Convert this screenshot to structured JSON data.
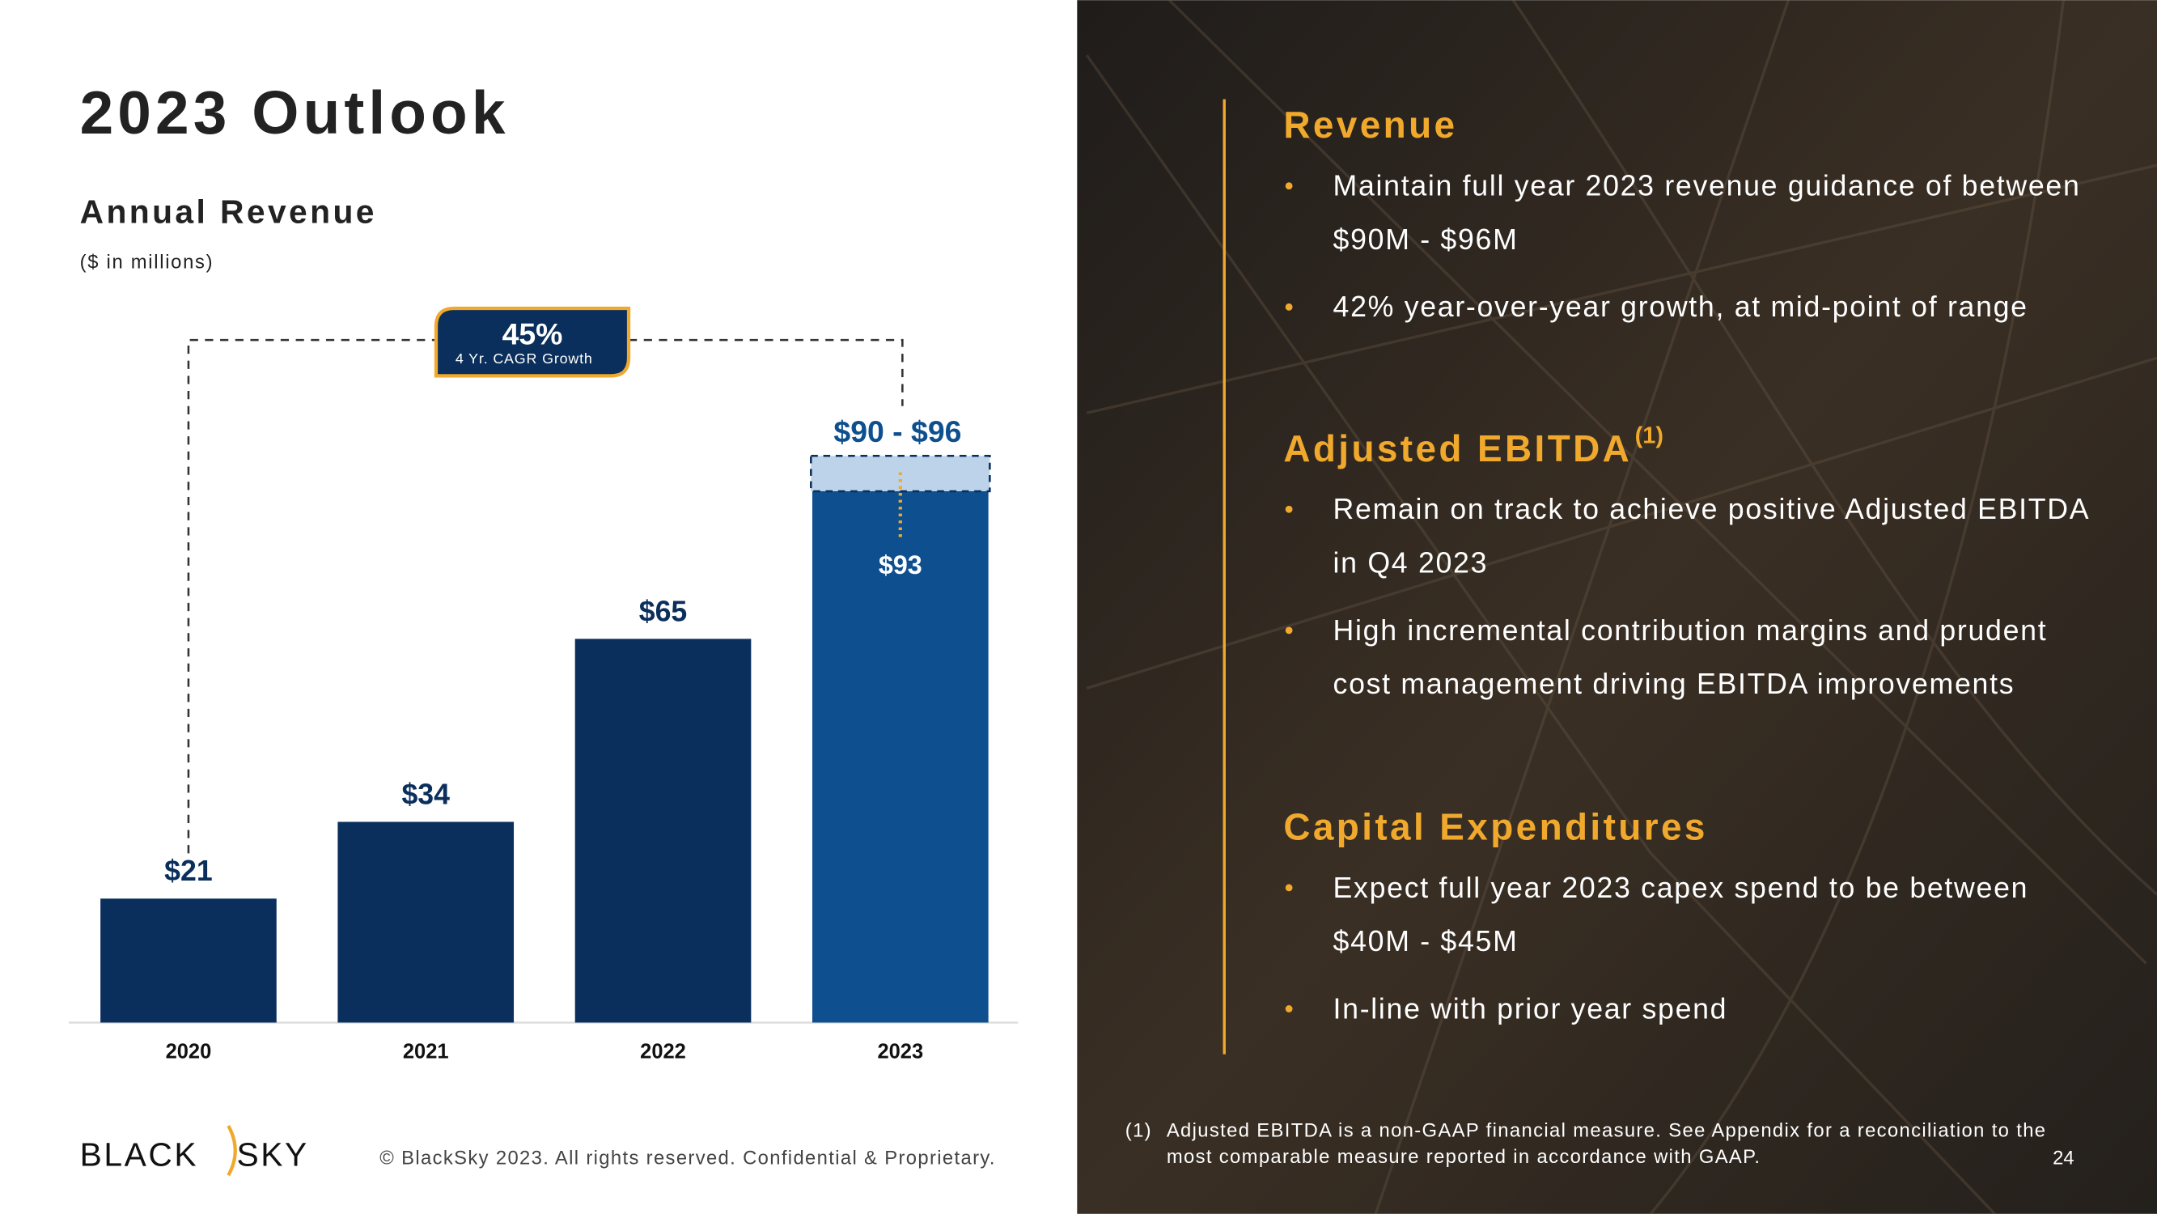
{
  "title": "2023 Outlook",
  "chart_data": {
    "type": "bar",
    "title": "Annual Revenue",
    "subtitle": "($ in millions)",
    "categories": [
      "2020",
      "2021",
      "2022",
      "2023"
    ],
    "values": [
      21,
      34,
      65,
      93
    ],
    "value_labels": [
      "$21",
      "$34",
      "$65",
      "$93"
    ],
    "colors": [
      "#0b2f5c",
      "#0b2f5c",
      "#0b2f5c",
      "#0e4f8f"
    ],
    "range": {
      "low": 90,
      "high": 96,
      "label": "$90 - $96"
    },
    "annotation": {
      "value": "45%",
      "text": "4 Yr. CAGR Growth"
    }
  },
  "sections": [
    {
      "heading": "Revenue",
      "bullets": [
        [
          "Maintain full year 2023 revenue guidance of between",
          "$90M - $96M"
        ],
        [
          "42% year-over-year growth, at mid-point of range"
        ]
      ]
    },
    {
      "heading": "Adjusted EBITDA",
      "superscript": "(1)",
      "bullets": [
        [
          "Remain on track to achieve positive Adjusted EBITDA",
          "in Q4 2023"
        ],
        [
          "High incremental contribution margins and prudent",
          "cost management driving EBITDA improvements"
        ]
      ]
    },
    {
      "heading": "Capital Expenditures",
      "bullets": [
        [
          "Expect full year 2023 capex spend to be between",
          "$40M - $45M"
        ],
        [
          "In-line with prior year spend"
        ]
      ]
    }
  ],
  "footnote": {
    "marker": "(1)",
    "lines": [
      "Adjusted EBITDA is a non-GAAP financial measure. See Appendix for a reconciliation to the",
      "most comparable measure reported in accordance with GAAP."
    ]
  },
  "page_number": "24",
  "copyright": "© BlackSky 2023. All rights reserved. Confidential & Proprietary.",
  "logo": {
    "left": "BLACK",
    "right": "SKY"
  }
}
